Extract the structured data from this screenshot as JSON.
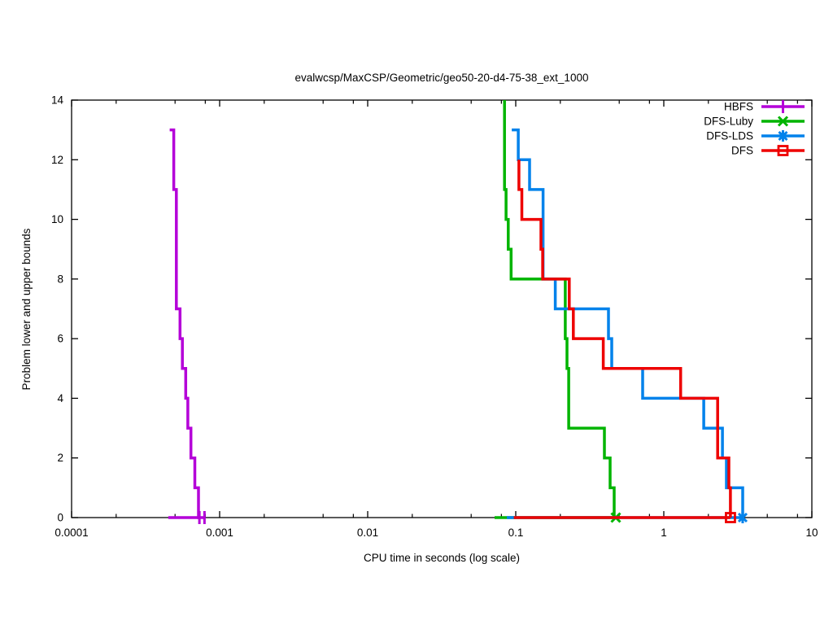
{
  "title": "evalwcsp/MaxCSP/Geometric/geo50-20-d4-75-38_ext_1000",
  "axes": {
    "x_label": "CPU time in seconds (log scale)",
    "y_label": "Problem lower and upper bounds"
  },
  "chart_data": {
    "type": "line",
    "subtype": "step-function-lower-upper-bounds",
    "x_scale": "log",
    "xlim": [
      0.0001,
      10
    ],
    "ylim": [
      0,
      14
    ],
    "grid": false,
    "x_ticks": [
      {
        "value": 0.0001,
        "label": "0.0001"
      },
      {
        "value": 0.001,
        "label": "0.001"
      },
      {
        "value": 0.01,
        "label": "0.01"
      },
      {
        "value": 0.1,
        "label": "0.1"
      },
      {
        "value": 1,
        "label": "1"
      },
      {
        "value": 10,
        "label": "10"
      }
    ],
    "x_minor_multiples": [
      2,
      5,
      8
    ],
    "y_ticks": [
      0,
      2,
      4,
      6,
      8,
      10,
      12,
      14
    ],
    "legend_position": "top-right",
    "series": [
      {
        "name": "HBFS",
        "color": "#b400d8",
        "marker": "vbar",
        "upper": [
          [
            0.00046,
            13
          ],
          [
            0.00049,
            13
          ],
          [
            0.00049,
            11
          ],
          [
            0.00051,
            11
          ],
          [
            0.00051,
            7
          ],
          [
            0.00054,
            7
          ],
          [
            0.00054,
            6
          ],
          [
            0.00056,
            6
          ],
          [
            0.00056,
            5
          ],
          [
            0.00059,
            5
          ],
          [
            0.00059,
            4
          ],
          [
            0.00061,
            4
          ],
          [
            0.00061,
            3
          ],
          [
            0.00064,
            3
          ],
          [
            0.00064,
            2
          ],
          [
            0.00068,
            2
          ],
          [
            0.00068,
            1
          ],
          [
            0.00072,
            1
          ],
          [
            0.00072,
            0
          ],
          [
            0.00074,
            0
          ]
        ],
        "lower": [
          [
            0.00045,
            0
          ],
          [
            0.00079,
            0
          ]
        ],
        "marker_points": [
          [
            0.00073,
            0
          ],
          [
            0.00079,
            0
          ]
        ]
      },
      {
        "name": "DFS-Luby",
        "color": "#00b400",
        "marker": "cross",
        "upper": [
          [
            0.084,
            14
          ],
          [
            0.084,
            11
          ],
          [
            0.086,
            11
          ],
          [
            0.086,
            10
          ],
          [
            0.089,
            10
          ],
          [
            0.089,
            9
          ],
          [
            0.093,
            9
          ],
          [
            0.093,
            8
          ],
          [
            0.216,
            8
          ],
          [
            0.216,
            6
          ],
          [
            0.222,
            6
          ],
          [
            0.222,
            5
          ],
          [
            0.228,
            5
          ],
          [
            0.228,
            3
          ],
          [
            0.397,
            3
          ],
          [
            0.397,
            2
          ],
          [
            0.434,
            2
          ],
          [
            0.434,
            1
          ],
          [
            0.462,
            1
          ],
          [
            0.462,
            0
          ],
          [
            0.474,
            0
          ]
        ],
        "lower": [
          [
            0.072,
            0
          ],
          [
            0.474,
            0
          ]
        ],
        "marker_points": [
          [
            0.474,
            0
          ]
        ]
      },
      {
        "name": "DFS-LDS",
        "color": "#0082eb",
        "marker": "asterisk",
        "upper": [
          [
            0.094,
            13
          ],
          [
            0.104,
            13
          ],
          [
            0.104,
            12
          ],
          [
            0.124,
            12
          ],
          [
            0.124,
            11
          ],
          [
            0.153,
            11
          ],
          [
            0.153,
            8
          ],
          [
            0.185,
            8
          ],
          [
            0.185,
            7
          ],
          [
            0.423,
            7
          ],
          [
            0.423,
            6
          ],
          [
            0.445,
            6
          ],
          [
            0.445,
            5
          ],
          [
            0.72,
            5
          ],
          [
            0.72,
            4
          ],
          [
            1.86,
            4
          ],
          [
            1.86,
            3
          ],
          [
            2.49,
            3
          ],
          [
            2.49,
            2
          ],
          [
            2.65,
            2
          ],
          [
            2.65,
            1
          ],
          [
            3.41,
            1
          ],
          [
            3.41,
            0
          ]
        ],
        "lower": [
          [
            0.087,
            0
          ],
          [
            3.41,
            0
          ]
        ],
        "marker_points": [
          [
            3.41,
            0
          ]
        ]
      },
      {
        "name": "DFS",
        "color": "#ee0000",
        "marker": "open-square",
        "upper": [
          [
            0.105,
            12
          ],
          [
            0.105,
            11
          ],
          [
            0.11,
            11
          ],
          [
            0.11,
            10
          ],
          [
            0.148,
            10
          ],
          [
            0.148,
            9
          ],
          [
            0.152,
            9
          ],
          [
            0.152,
            8
          ],
          [
            0.23,
            8
          ],
          [
            0.23,
            7
          ],
          [
            0.245,
            7
          ],
          [
            0.245,
            6
          ],
          [
            0.39,
            6
          ],
          [
            0.39,
            5
          ],
          [
            1.3,
            5
          ],
          [
            1.3,
            4
          ],
          [
            2.31,
            4
          ],
          [
            2.31,
            2
          ],
          [
            2.75,
            2
          ],
          [
            2.75,
            1
          ],
          [
            2.82,
            1
          ],
          [
            2.82,
            0
          ]
        ],
        "lower": [
          [
            0.097,
            0
          ],
          [
            2.82,
            0
          ]
        ],
        "marker_points": [
          [
            2.82,
            0
          ]
        ]
      }
    ]
  }
}
